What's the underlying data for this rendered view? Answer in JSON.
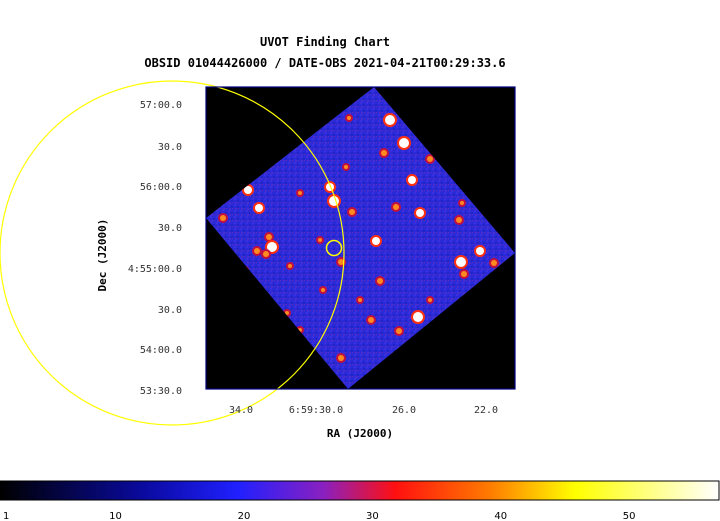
{
  "chart_data": {
    "type": "heatmap",
    "title": "UVOT Finding Chart",
    "subtitle": "OBSID 01044426000 / DATE-OBS 2021-04-21T00:29:33.6",
    "xlabel": "RA (J2000)",
    "ylabel": "Dec (J2000)",
    "x_ticks": [
      "34.0",
      "6:59:30.0",
      "26.0",
      "22.0"
    ],
    "y_ticks": [
      "57:00.0",
      "30.0",
      "56:00.0",
      "30.0",
      "4:55:00.0",
      "30.0",
      "54:00.0",
      "53:30.0"
    ],
    "colorbar": {
      "ticks": [
        "1",
        "10",
        "20",
        "30",
        "40",
        "50"
      ],
      "range": [
        1,
        57
      ],
      "colormap": [
        "#000000",
        "#0000ff",
        "#ff0000",
        "#ffff00",
        "#ffffff"
      ]
    },
    "markers": [
      {
        "name": "target",
        "shape": "circle",
        "color": "#ffff00"
      },
      {
        "name": "error-region",
        "shape": "circle",
        "color": "#ffff00"
      }
    ],
    "colors": {
      "frame": "#000080",
      "background_field": "#2a2ad8",
      "outside_exposure": "#000000",
      "overlay": "#ffff00"
    }
  }
}
